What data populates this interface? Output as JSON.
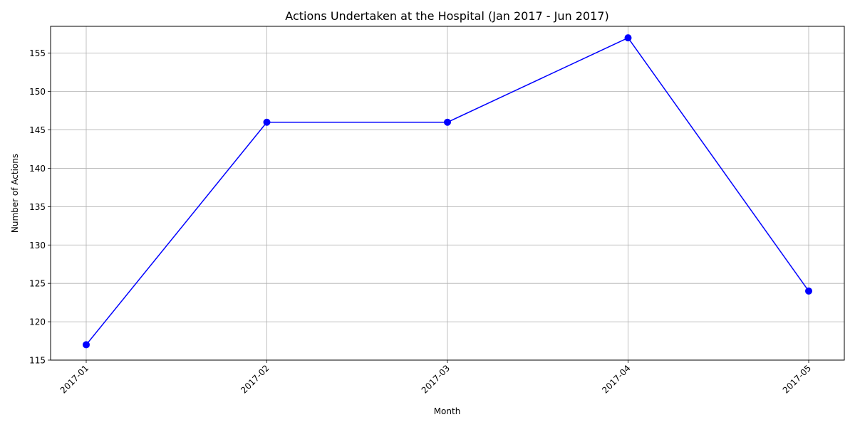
{
  "chart_data": {
    "type": "line",
    "title": "Actions Undertaken at the Hospital (Jan 2017 - Jun 2017)",
    "xlabel": "Month",
    "ylabel": "Number of Actions",
    "categories": [
      "2017-01",
      "2017-02",
      "2017-03",
      "2017-04",
      "2017-05"
    ],
    "series": [
      {
        "values": [
          117,
          146,
          146,
          157,
          124
        ],
        "color": "#0000ff",
        "marker": "circle"
      }
    ],
    "ylim": [
      115,
      158.5
    ],
    "yticks": [
      115,
      120,
      125,
      130,
      135,
      140,
      145,
      150,
      155
    ],
    "grid": true,
    "x_tick_rotation": 45
  }
}
